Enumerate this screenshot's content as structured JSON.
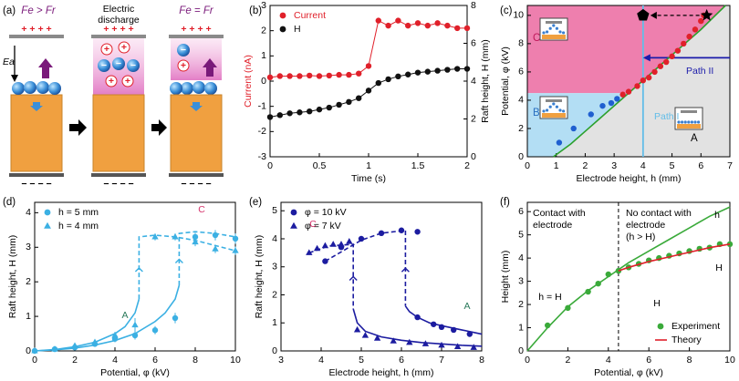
{
  "diagram": {
    "label": "(a)",
    "left_title": "Fe > Fr",
    "middle_title": [
      "Electric",
      "discharge"
    ],
    "right_title": "Fe = Fr",
    "field": "Ea",
    "anode": "+ + + +",
    "cathode": "− − − −",
    "positive": "+",
    "negative": "−"
  },
  "chart_data": [
    {
      "type": "line",
      "label": "(b)",
      "xlabel": "Time (s)",
      "ylabel": "Current (nA)",
      "ylabel_color": "#e0202a",
      "y2label": "Raft height, H (mm)",
      "xlim": [
        0,
        2
      ],
      "xticks": [
        0,
        0.5,
        1,
        1.5,
        2
      ],
      "ylim": [
        -3,
        3
      ],
      "yticks": [
        -3,
        -2,
        -1,
        0,
        1,
        2,
        3
      ],
      "y2lim": [
        0,
        8
      ],
      "y2ticks": [
        0,
        2,
        4,
        6,
        8
      ],
      "legend": "upper left",
      "legend_text_color": "series",
      "series": [
        {
          "name": "Current",
          "color": "#e0202a",
          "marker": "circle",
          "line": true,
          "x": [
            0,
            0.1,
            0.2,
            0.3,
            0.4,
            0.5,
            0.6,
            0.7,
            0.8,
            0.9,
            1,
            1.1,
            1.2,
            1.3,
            1.4,
            1.5,
            1.6,
            1.7,
            1.8,
            1.9,
            2
          ],
          "values": [
            0.15,
            0.2,
            0.2,
            0.2,
            0.22,
            0.2,
            0.22,
            0.25,
            0.25,
            0.3,
            0.6,
            2.4,
            2.2,
            2.4,
            2.2,
            2.3,
            2.2,
            2.3,
            2.2,
            2.1,
            2.1
          ]
        },
        {
          "name": "H",
          "color": "#111111",
          "axis": "y2",
          "marker": "circle",
          "line": true,
          "x": [
            0,
            0.1,
            0.2,
            0.3,
            0.4,
            0.5,
            0.6,
            0.7,
            0.8,
            0.9,
            1,
            1.1,
            1.2,
            1.3,
            1.4,
            1.5,
            1.6,
            1.7,
            1.8,
            1.9,
            2
          ],
          "values": [
            2.1,
            2.2,
            2.3,
            2.35,
            2.4,
            2.5,
            2.6,
            2.75,
            2.9,
            3.1,
            3.5,
            3.9,
            4.1,
            4.25,
            4.35,
            4.45,
            4.5,
            4.55,
            4.6,
            4.65,
            4.65
          ]
        }
      ]
    },
    {
      "type": "scatter",
      "label": "(c)",
      "xlabel": "Electrode height, h (mm)",
      "ylabel": "Potential, φ (kV)",
      "xlim": [
        0,
        7
      ],
      "xticks": [
        0,
        1,
        2,
        3,
        4,
        5,
        6,
        7
      ],
      "ylim": [
        0,
        10.7
      ],
      "yticks": [
        0,
        2,
        4,
        6,
        8,
        10
      ],
      "regions": [
        {
          "label": "C",
          "color": "#ee7fae",
          "above": 4.5
        },
        {
          "label": "B",
          "color": "#b3def4",
          "below": 4.5
        },
        {
          "label": "A",
          "color": "#e2e2e2"
        }
      ],
      "paths": [
        {
          "label": "Path I",
          "color": "#62bde8",
          "x": 4
        },
        {
          "label": "Path II",
          "color": "#1c1caa",
          "y": 7,
          "from": 7,
          "to": 4
        }
      ],
      "series": [
        {
          "color": "#2ca02c",
          "marker": "none",
          "line": true,
          "x": [
            0.9,
            1.5,
            2,
            2.5,
            3,
            3.5,
            4,
            4.5,
            5,
            5.5,
            6,
            6.5,
            6.85
          ],
          "values": [
            0,
            0.9,
            1.8,
            2.7,
            3.6,
            4.5,
            5.4,
            6.3,
            7.2,
            8.1,
            9.0,
            10.0,
            10.7
          ]
        },
        {
          "color": "#1f5fd0",
          "marker": "circle",
          "x": [
            1.1,
            1.6,
            2.2,
            2.6,
            2.9,
            3.1
          ],
          "values": [
            1,
            2,
            3,
            3.6,
            3.8,
            4.1
          ]
        },
        {
          "color": "#e0202a",
          "marker": "circle",
          "x": [
            3.3,
            3.5,
            3.8,
            4.0,
            4.2,
            4.4,
            4.6,
            4.8,
            5.0,
            5.2,
            5.4,
            5.6,
            5.8,
            6.0,
            6.1
          ],
          "values": [
            4.4,
            4.6,
            5.0,
            5.4,
            5.6,
            6.0,
            6.4,
            6.7,
            7.1,
            7.5,
            8.0,
            8.5,
            9.0,
            9.6,
            10
          ]
        },
        {
          "color": "#000000",
          "marker": "pentagon",
          "size": 7,
          "x": [
            4
          ],
          "values": [
            10
          ]
        },
        {
          "color": "#000000",
          "marker": "star",
          "size": 7,
          "x": [
            6.2
          ],
          "values": [
            10
          ]
        }
      ]
    },
    {
      "type": "scatter",
      "label": "(d)",
      "xlabel": "Potential, φ (kV)",
      "ylabel": "Raft height, H (mm)",
      "xlim": [
        0,
        10
      ],
      "xticks": [
        0,
        2,
        4,
        6,
        8,
        10
      ],
      "ylim": [
        0,
        4.3
      ],
      "yticks": [
        0,
        1,
        2,
        3,
        4
      ],
      "legend": "upper left",
      "annotations": [
        {
          "text": "A",
          "color": "#2b7a5b"
        },
        {
          "text": "C",
          "color": "#d6336c"
        }
      ],
      "series": [
        {
          "color": "#3bb0e3",
          "marker": "none",
          "line": true,
          "x": [
            0,
            1,
            2,
            3,
            4,
            5,
            6,
            6.5,
            7,
            7.2
          ],
          "values": [
            0,
            0.03,
            0.08,
            0.17,
            0.3,
            0.5,
            0.85,
            1.1,
            1.5,
            1.9
          ]
        },
        {
          "color": "#3bb0e3",
          "marker": "none",
          "line": true,
          "dash": true,
          "x": [
            7.2,
            7.2,
            8,
            9,
            10
          ],
          "values": [
            1.9,
            3.4,
            3.45,
            3.4,
            3.3
          ]
        },
        {
          "color": "#3bb0e3",
          "marker": "none",
          "line": true,
          "x": [
            0,
            1,
            2,
            3,
            4,
            4.5,
            5,
            5.2
          ],
          "values": [
            0,
            0.04,
            0.12,
            0.25,
            0.5,
            0.7,
            1.1,
            1.5
          ]
        },
        {
          "color": "#3bb0e3",
          "marker": "none",
          "line": true,
          "dash": true,
          "x": [
            5.2,
            5.2,
            6,
            7,
            8,
            9,
            10
          ],
          "values": [
            1.5,
            3.3,
            3.35,
            3.3,
            3.2,
            3.05,
            2.9
          ]
        },
        {
          "name": "h = 5 mm",
          "color": "#3bb0e3",
          "marker": "circle",
          "x": [
            0,
            1,
            2,
            3,
            4,
            5,
            6,
            7,
            8,
            9,
            10
          ],
          "values": [
            0,
            0.05,
            0.1,
            0.2,
            0.35,
            0.45,
            0.6,
            0.95,
            3.3,
            3.35,
            3.25
          ],
          "errors": [
            0,
            0.03,
            0.05,
            0.08,
            0.1,
            0.12,
            0.12,
            0.15,
            0.12,
            0.15,
            0.15
          ]
        },
        {
          "name": "h = 4 mm",
          "color": "#3bb0e3",
          "marker": "triangle",
          "x": [
            0,
            1,
            2,
            3,
            4,
            5,
            6,
            7,
            8,
            9,
            10
          ],
          "values": [
            0,
            0.05,
            0.15,
            0.25,
            0.45,
            0.75,
            3.3,
            3.3,
            3.15,
            2.95,
            2.9
          ],
          "errors": [
            0,
            0.03,
            0.05,
            0.08,
            0.1,
            0.2,
            0.1,
            0.1,
            0.12,
            0.12,
            0.12
          ]
        }
      ]
    },
    {
      "type": "scatter",
      "label": "(e)",
      "xlabel": "Electrode height, h (mm)",
      "ylabel": "Raft height, H (mm)",
      "xlim": [
        3,
        8
      ],
      "xticks": [
        3,
        4,
        5,
        6,
        7,
        8
      ],
      "ylim": [
        0,
        5.3
      ],
      "yticks": [
        0,
        1,
        2,
        3,
        4,
        5
      ],
      "legend": "upper left",
      "annotations": [
        {
          "text": "C",
          "color": "#d6336c"
        },
        {
          "text": "A",
          "color": "#2b7a5b"
        }
      ],
      "series": [
        {
          "color": "#1c1ca0",
          "marker": "none",
          "line": true,
          "dash": true,
          "x": [
            4.1,
            5,
            5.5,
            6.1,
            6.1
          ],
          "values": [
            3.2,
            3.95,
            4.2,
            4.3,
            1.6
          ]
        },
        {
          "color": "#1c1ca0",
          "marker": "none",
          "line": true,
          "x": [
            6.1,
            6.2,
            6.4,
            6.7,
            7,
            7.5,
            8
          ],
          "values": [
            1.6,
            1.4,
            1.2,
            1.0,
            0.9,
            0.75,
            0.6
          ]
        },
        {
          "color": "#1c1ca0",
          "marker": "none",
          "line": true,
          "dash": true,
          "x": [
            3.7,
            4.2,
            4.8,
            4.8
          ],
          "values": [
            3.5,
            3.75,
            3.8,
            1.5
          ]
        },
        {
          "color": "#1c1ca0",
          "marker": "none",
          "line": true,
          "x": [
            4.8,
            4.9,
            5.1,
            5.5,
            6,
            6.5,
            7,
            7.5,
            8
          ],
          "values": [
            1.5,
            1.0,
            0.7,
            0.5,
            0.38,
            0.3,
            0.25,
            0.2,
            0.17
          ]
        },
        {
          "name": "φ = 10 kV",
          "color": "#1c1ca0",
          "marker": "circle",
          "x": [
            4.1,
            4.5,
            5.0,
            5.5,
            6.0,
            6.4,
            6.4,
            6.8,
            7.0,
            7.3,
            7.7
          ],
          "values": [
            3.2,
            3.7,
            4.0,
            4.2,
            4.3,
            4.25,
            1.2,
            0.95,
            0.85,
            0.75,
            0.6
          ]
        },
        {
          "name": "φ = 7 kV",
          "color": "#1c1ca0",
          "marker": "triangle",
          "x": [
            3.7,
            3.9,
            4.1,
            4.3,
            4.5,
            4.7,
            4.9,
            5.1,
            5.4,
            5.8,
            6.2,
            6.6,
            7.0,
            7.4,
            7.8
          ],
          "values": [
            3.5,
            3.65,
            3.75,
            3.8,
            3.8,
            3.9,
            0.75,
            0.55,
            0.45,
            0.35,
            0.3,
            0.25,
            0.2,
            0.15,
            0.12
          ]
        }
      ]
    },
    {
      "type": "scatter",
      "label": "(f)",
      "xlabel": "Potential, φ (kV)",
      "ylabel": "Height (mm)",
      "xlim": [
        0,
        10
      ],
      "xticks": [
        0,
        2,
        4,
        6,
        8,
        10
      ],
      "ylim": [
        0,
        6.4
      ],
      "yticks": [
        0,
        1,
        2,
        3,
        4,
        5,
        6
      ],
      "legend": "lower right",
      "vline": 4.5,
      "annotations": [
        {
          "text": "Contact with",
          "color": "#000000"
        },
        {
          "text": "electrode",
          "color": "#000000"
        },
        {
          "text": "No contact with",
          "color": "#000000"
        },
        {
          "text": "electrode",
          "color": "#000000"
        },
        {
          "text": "(h > H)",
          "color": "#000000"
        },
        {
          "text": "h",
          "color": "#000000"
        },
        {
          "text": "H",
          "color": "#000000"
        },
        {
          "text": "h = H",
          "color": "#000000"
        },
        {
          "text": "H",
          "color": "#000000"
        }
      ],
      "series": [
        {
          "color": "#3aaa3a",
          "marker": "none",
          "line": true,
          "x": [
            0,
            1,
            2,
            3,
            4,
            5,
            6,
            7,
            8,
            9,
            10
          ],
          "values": [
            0,
            1.0,
            1.9,
            2.6,
            3.2,
            3.8,
            4.3,
            4.8,
            5.3,
            5.8,
            6.2
          ]
        },
        {
          "name": "Experiment",
          "color": "#3aaa3a",
          "marker": "circle",
          "x": [
            1,
            2,
            3,
            3.5,
            4,
            4.5,
            5,
            5.5,
            6,
            6.5,
            7,
            7.5,
            8,
            8.5,
            9,
            9.5,
            10
          ],
          "values": [
            1.1,
            1.85,
            2.55,
            2.9,
            3.3,
            3.45,
            3.6,
            3.75,
            3.9,
            4.0,
            4.1,
            4.2,
            4.3,
            4.4,
            4.45,
            4.6,
            4.6
          ]
        },
        {
          "name": "Theory",
          "color": "#e0202a",
          "marker": "none",
          "line": true,
          "x": [
            4.5,
            5,
            6,
            7,
            8,
            9,
            10
          ],
          "values": [
            3.45,
            3.6,
            3.85,
            4.05,
            4.25,
            4.45,
            4.6
          ]
        }
      ]
    }
  ]
}
